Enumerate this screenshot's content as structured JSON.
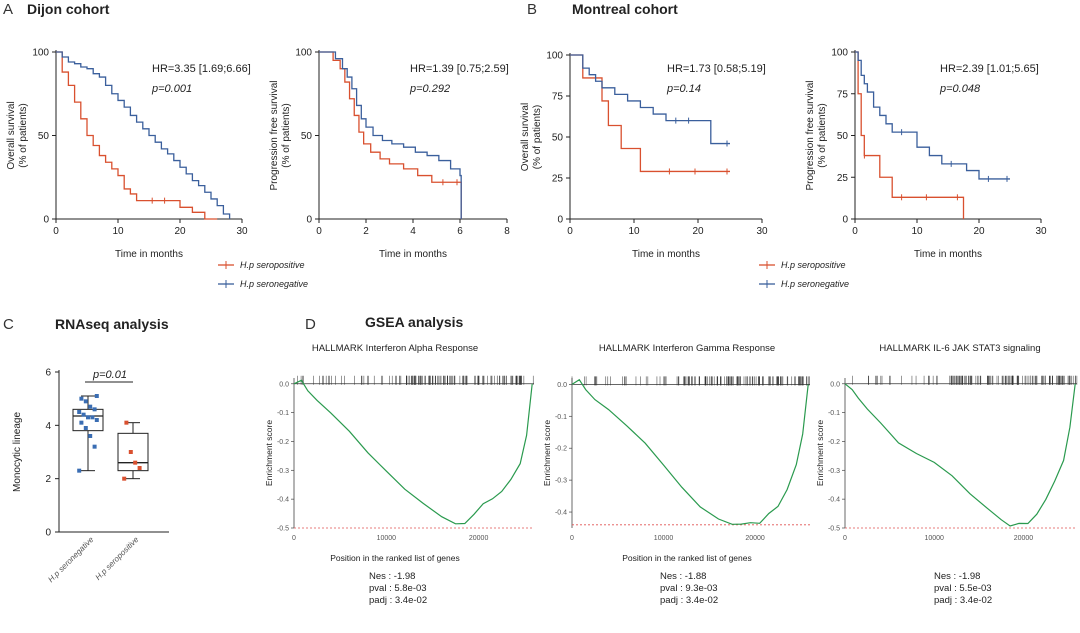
{
  "panels": {
    "A": {
      "letter": "A",
      "title": "Dijon cohort"
    },
    "B": {
      "letter": "B",
      "title": "Montreal cohort"
    },
    "C": {
      "letter": "C",
      "title": "RNAseq analysis"
    },
    "D": {
      "letter": "D",
      "title": "GSEA analysis"
    }
  },
  "colors": {
    "seropositive": "#d9502f",
    "seronegative": "#3a5f9c",
    "gsea": "#2a9a4e",
    "boxpoint_neg": "#3a6db3",
    "boxpoint_pos": "#d9502f"
  },
  "chart_data": [
    {
      "id": "dijon-os",
      "type": "line",
      "ylabel": "Overall survival\n(% of patients)",
      "xlabel": "Time in months",
      "xlim": [
        0,
        30
      ],
      "ylim": [
        0,
        100
      ],
      "xticks": [
        "0",
        "10",
        "20",
        "30"
      ],
      "yticks": [
        "0",
        "50",
        "100"
      ],
      "hr": "HR=3.35 [1.69;6.66]",
      "p": "p=0.001",
      "series": [
        {
          "key": "seropositive",
          "x": [
            0,
            1,
            2,
            3,
            4,
            5,
            6,
            7,
            8,
            9,
            10,
            11,
            12,
            13,
            16,
            18,
            20,
            22,
            24,
            26
          ],
          "y": [
            100,
            88,
            80,
            70,
            60,
            50,
            44,
            38,
            34,
            30,
            26,
            18,
            15,
            11,
            11,
            11,
            7,
            4,
            0,
            0
          ]
        },
        {
          "key": "seronegative",
          "x": [
            0,
            1,
            2,
            3,
            4,
            5,
            6,
            7,
            8,
            9,
            10,
            11,
            12,
            13,
            14,
            15,
            16,
            17,
            18,
            19,
            20,
            21,
            22,
            23,
            24,
            25,
            26,
            27,
            28
          ],
          "y": [
            100,
            97,
            94,
            93,
            91,
            90,
            87,
            85,
            80,
            75,
            71,
            67,
            62,
            58,
            54,
            50,
            46,
            42,
            39,
            35,
            31,
            27,
            23,
            20,
            16,
            12,
            8,
            3,
            0
          ]
        }
      ]
    },
    {
      "id": "dijon-pfs",
      "type": "line",
      "ylabel": "Progression free survival\n(% of patients)",
      "xlabel": "Time in months",
      "xlim": [
        0,
        8
      ],
      "ylim": [
        0,
        100
      ],
      "xticks": [
        "0",
        "2",
        "4",
        "6",
        "8"
      ],
      "yticks": [
        "0",
        "50",
        "100"
      ],
      "hr": "HR=1.39 [0.75;2.59]",
      "p": "p=0.292",
      "series": [
        {
          "key": "seropositive",
          "x": [
            0,
            0.6,
            0.9,
            1.1,
            1.3,
            1.5,
            1.7,
            1.9,
            2.2,
            2.6,
            3.0,
            3.6,
            4.2,
            4.8,
            5.4,
            6.0,
            6.05
          ],
          "y": [
            100,
            95,
            90,
            82,
            72,
            62,
            52,
            45,
            40,
            36,
            33,
            30,
            26,
            22,
            22,
            22,
            0
          ]
        },
        {
          "key": "seronegative",
          "x": [
            0,
            0.7,
            1.0,
            1.2,
            1.4,
            1.6,
            1.8,
            2.0,
            2.3,
            2.7,
            3.1,
            3.6,
            4.1,
            4.6,
            5.1,
            5.6,
            6.0,
            6.05
          ],
          "y": [
            100,
            96,
            90,
            85,
            78,
            68,
            60,
            55,
            50,
            47,
            45,
            43,
            40,
            38,
            35,
            30,
            26,
            0
          ]
        }
      ]
    },
    {
      "id": "montreal-os",
      "type": "line",
      "ylabel": "Overall survival\n(% of patients)",
      "xlabel": "Time in months",
      "xlim": [
        0,
        30
      ],
      "ylim": [
        0,
        100
      ],
      "xticks": [
        "0",
        "10",
        "20",
        "30"
      ],
      "yticks": [
        "0",
        "25",
        "50",
        "75",
        "100"
      ],
      "hr": "HR=1.73 [0.58;5.19]",
      "p": "p=0.14",
      "series": [
        {
          "key": "seropositive",
          "x": [
            0,
            2,
            5,
            6,
            8,
            11,
            16,
            20,
            25
          ],
          "y": [
            100,
            86,
            72,
            57,
            43,
            29,
            29,
            29,
            29
          ]
        },
        {
          "key": "seronegative",
          "x": [
            0,
            2,
            3,
            4,
            5,
            7,
            9,
            11,
            13,
            15,
            17,
            19,
            22,
            25
          ],
          "y": [
            100,
            92,
            88,
            84,
            80,
            76,
            72,
            68,
            64,
            60,
            60,
            60,
            46,
            46
          ]
        }
      ]
    },
    {
      "id": "montreal-pfs",
      "type": "line",
      "ylabel": "Progression free survival\n(% of patients)",
      "xlabel": "Time in months",
      "xlim": [
        0,
        30
      ],
      "ylim": [
        0,
        100
      ],
      "xticks": [
        "0",
        "10",
        "20",
        "30"
      ],
      "yticks": [
        "0",
        "25",
        "50",
        "75",
        "100"
      ],
      "hr": "HR=2.39 [1.01;5.65]",
      "p": "p=0.048",
      "series": [
        {
          "key": "seropositive",
          "x": [
            0,
            0.5,
            1,
            1.5,
            2,
            4,
            6,
            8,
            12,
            17,
            17.5
          ],
          "y": [
            100,
            75,
            50,
            38,
            38,
            25,
            13,
            13,
            13,
            13,
            0
          ]
        },
        {
          "key": "seronegative",
          "x": [
            0,
            0.5,
            1,
            1.5,
            2,
            3,
            4,
            5,
            6,
            8,
            10,
            12,
            14,
            16,
            18,
            20,
            22,
            25
          ],
          "y": [
            100,
            95,
            86,
            81,
            76,
            67,
            62,
            57,
            52,
            52,
            43,
            38,
            33,
            33,
            29,
            24,
            24,
            24
          ]
        }
      ]
    },
    {
      "id": "rnaseq-box",
      "type": "box",
      "ylabel": "Monocytic lineage",
      "ylim": [
        0,
        6
      ],
      "yticks": [
        "0",
        "2",
        "4",
        "6"
      ],
      "categories": [
        "H.p seronegative",
        "H.p seropositive"
      ],
      "p": "p=0.01",
      "boxes": [
        {
          "min": 2.3,
          "q1": 3.8,
          "median": 4.35,
          "q3": 4.6,
          "max": 5.1,
          "points": [
            2.3,
            3.2,
            3.6,
            3.9,
            4.1,
            4.2,
            4.3,
            4.3,
            4.4,
            4.5,
            4.6,
            4.7,
            4.9,
            5.0,
            5.1
          ]
        },
        {
          "min": 2.0,
          "q1": 2.3,
          "median": 2.6,
          "q3": 3.7,
          "max": 4.1,
          "points": [
            2.0,
            2.4,
            2.6,
            3.0,
            4.1
          ]
        }
      ]
    },
    {
      "id": "gsea-ifna",
      "type": "line",
      "title": "HALLMARK Interferon Alpha Response",
      "ylabel": "Enrichment score",
      "xlabel": "Position in the ranked list of genes",
      "ylim": [
        -0.5,
        0.02
      ],
      "yticks": [
        "0.0",
        "-0.1",
        "-0.2",
        "-0.3",
        "-0.4",
        "-0.5"
      ],
      "xticks": [
        "0",
        "10000",
        "20000"
      ],
      "xlim": [
        0,
        26000
      ],
      "min_es": -0.5,
      "x": [
        0,
        800,
        1500,
        2500,
        4000,
        6000,
        8000,
        10000,
        12000,
        14000,
        16000,
        17500,
        18500,
        19500,
        20500,
        21500,
        22500,
        23500,
        24500,
        25200,
        25800
      ],
      "y": [
        0,
        0.015,
        -0.02,
        -0.06,
        -0.1,
        -0.17,
        -0.24,
        -0.3,
        -0.36,
        -0.42,
        -0.46,
        -0.49,
        -0.48,
        -0.45,
        -0.42,
        -0.4,
        -0.37,
        -0.33,
        -0.28,
        -0.18,
        0
      ],
      "nes": "Nes : -1.98",
      "pval": "pval : 5.8e-03",
      "padj": "padj : 3.4e-02"
    },
    {
      "id": "gsea-ifng",
      "type": "line",
      "title": "HALLMARK Interferon Gamma Response",
      "ylabel": "Enrichment score",
      "xlabel": "Position in the ranked list of genes",
      "ylim": [
        -0.45,
        0.02
      ],
      "yticks": [
        "0.0",
        "-0.1",
        "-0.2",
        "-0.3",
        "-0.4"
      ],
      "xticks": [
        "0",
        "10000",
        "20000"
      ],
      "xlim": [
        0,
        26000
      ],
      "min_es": -0.44,
      "x": [
        0,
        800,
        1500,
        2500,
        4000,
        6000,
        8000,
        10000,
        12000,
        14000,
        16000,
        17500,
        18500,
        19500,
        20500,
        21500,
        22500,
        23500,
        24500,
        25200,
        25800
      ],
      "y": [
        0,
        0.01,
        -0.02,
        -0.05,
        -0.08,
        -0.13,
        -0.19,
        -0.25,
        -0.32,
        -0.38,
        -0.42,
        -0.44,
        -0.44,
        -0.43,
        -0.44,
        -0.41,
        -0.38,
        -0.33,
        -0.25,
        -0.15,
        0
      ],
      "nes": "Nes : -1.88",
      "pval": "pval : 9.3e-03",
      "padj": "padj : 3.4e-02"
    },
    {
      "id": "gsea-il6",
      "type": "line",
      "title": "HALLMARK IL-6 JAK STAT3 signaling",
      "ylabel": "Enrichment score",
      "xlabel": "",
      "ylim": [
        -0.5,
        0.02
      ],
      "yticks": [
        "0.0",
        "-0.1",
        "-0.2",
        "-0.3",
        "-0.4",
        "-0.5"
      ],
      "xticks": [
        "0",
        "10000",
        "20000"
      ],
      "xlim": [
        0,
        26000
      ],
      "min_es": -0.5,
      "x": [
        0,
        800,
        1500,
        2500,
        4000,
        6000,
        8000,
        10000,
        12000,
        14000,
        16000,
        17500,
        18500,
        19500,
        20500,
        21500,
        22500,
        23500,
        24500,
        25200,
        25800
      ],
      "y": [
        0,
        -0.02,
        -0.05,
        -0.09,
        -0.14,
        -0.2,
        -0.24,
        -0.27,
        -0.32,
        -0.38,
        -0.43,
        -0.47,
        -0.49,
        -0.48,
        -0.49,
        -0.45,
        -0.4,
        -0.34,
        -0.26,
        -0.15,
        0
      ],
      "nes": "Nes : -1.98",
      "pval": "pval : 5.5e-03",
      "padj": "padj : 3.4e-02"
    }
  ],
  "legend": {
    "seropositive": "H.p seropositive",
    "seronegative": "H.p seronegative"
  }
}
